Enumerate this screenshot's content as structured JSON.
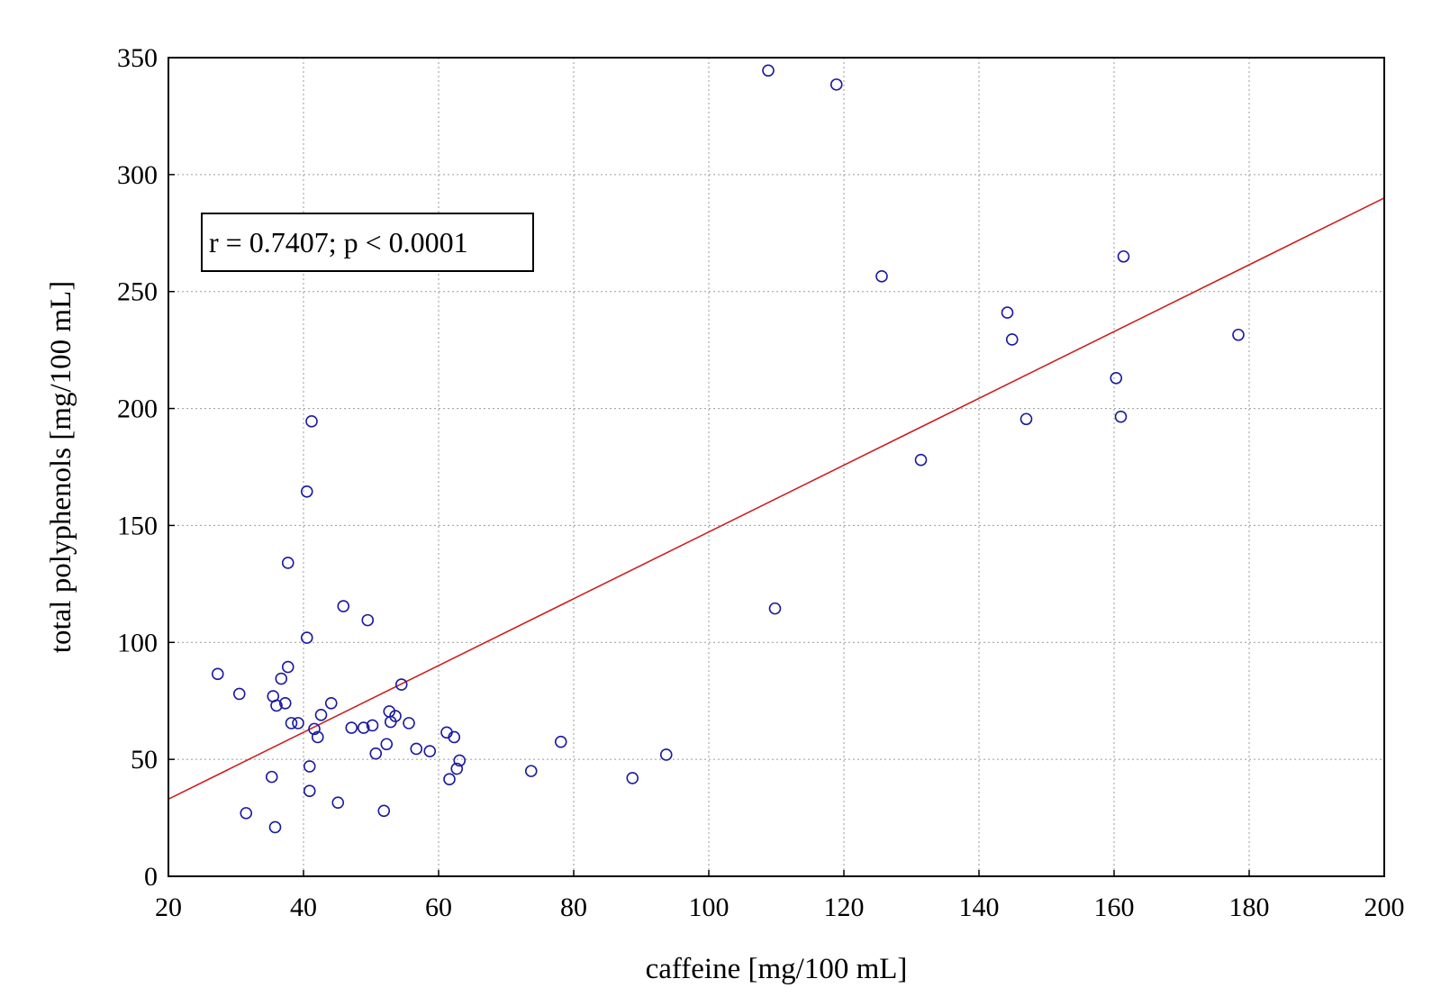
{
  "chart_data": {
    "type": "scatter",
    "xlabel": "caffeine [mg/100 mL]",
    "ylabel": "total polyphenols [mg/100 mL]",
    "xlim": [
      20,
      200
    ],
    "ylim": [
      0,
      350
    ],
    "x_ticks": [
      20,
      40,
      60,
      80,
      100,
      120,
      140,
      160,
      180,
      200
    ],
    "y_ticks": [
      0,
      50,
      100,
      150,
      200,
      250,
      300,
      350
    ],
    "grid": true,
    "annotation": "r = 0.7407; p < 0.0001",
    "annotation_position": "top-left",
    "fit_line": {
      "x": [
        20,
        200
      ],
      "y": [
        33,
        290
      ],
      "color": "#cc2020"
    },
    "marker_color": "#1a1aa0",
    "points": [
      {
        "x": 27.3,
        "y": 86.5
      },
      {
        "x": 30.5,
        "y": 78
      },
      {
        "x": 31.5,
        "y": 27
      },
      {
        "x": 35.3,
        "y": 42.5
      },
      {
        "x": 35.5,
        "y": 77
      },
      {
        "x": 35.8,
        "y": 21
      },
      {
        "x": 36,
        "y": 73
      },
      {
        "x": 36.7,
        "y": 84.5
      },
      {
        "x": 37.3,
        "y": 74
      },
      {
        "x": 37.7,
        "y": 89.5
      },
      {
        "x": 37.7,
        "y": 134
      },
      {
        "x": 38.2,
        "y": 65.5
      },
      {
        "x": 39.2,
        "y": 65.5
      },
      {
        "x": 40.5,
        "y": 102
      },
      {
        "x": 40.5,
        "y": 164.5
      },
      {
        "x": 40.9,
        "y": 47
      },
      {
        "x": 40.9,
        "y": 36.5
      },
      {
        "x": 41.2,
        "y": 194.5
      },
      {
        "x": 41.6,
        "y": 63
      },
      {
        "x": 42.1,
        "y": 59.5
      },
      {
        "x": 42.6,
        "y": 69
      },
      {
        "x": 44.1,
        "y": 74
      },
      {
        "x": 45.1,
        "y": 31.5
      },
      {
        "x": 45.9,
        "y": 115.5
      },
      {
        "x": 47.1,
        "y": 63.5
      },
      {
        "x": 48.9,
        "y": 63.5
      },
      {
        "x": 49.5,
        "y": 109.5
      },
      {
        "x": 50.2,
        "y": 64.5
      },
      {
        "x": 50.7,
        "y": 52.5
      },
      {
        "x": 51.9,
        "y": 28
      },
      {
        "x": 52.3,
        "y": 56.5
      },
      {
        "x": 52.7,
        "y": 70.5
      },
      {
        "x": 52.9,
        "y": 66
      },
      {
        "x": 53.6,
        "y": 68.5
      },
      {
        "x": 54.5,
        "y": 82
      },
      {
        "x": 55.6,
        "y": 65.5
      },
      {
        "x": 56.7,
        "y": 54.5
      },
      {
        "x": 58.7,
        "y": 53.5
      },
      {
        "x": 61.2,
        "y": 61.5
      },
      {
        "x": 61.6,
        "y": 41.5
      },
      {
        "x": 62.3,
        "y": 59.5
      },
      {
        "x": 62.7,
        "y": 46
      },
      {
        "x": 63.1,
        "y": 49.5
      },
      {
        "x": 73.7,
        "y": 45
      },
      {
        "x": 78.1,
        "y": 57.5
      },
      {
        "x": 88.7,
        "y": 42
      },
      {
        "x": 93.7,
        "y": 52
      },
      {
        "x": 108.8,
        "y": 344.5
      },
      {
        "x": 109.8,
        "y": 114.5
      },
      {
        "x": 118.9,
        "y": 338.5
      },
      {
        "x": 125.6,
        "y": 256.5
      },
      {
        "x": 131.4,
        "y": 178
      },
      {
        "x": 144.2,
        "y": 241
      },
      {
        "x": 144.9,
        "y": 229.5
      },
      {
        "x": 147,
        "y": 195.5
      },
      {
        "x": 160.3,
        "y": 213
      },
      {
        "x": 161,
        "y": 196.5
      },
      {
        "x": 161.4,
        "y": 265
      },
      {
        "x": 178.4,
        "y": 231.5
      }
    ]
  }
}
